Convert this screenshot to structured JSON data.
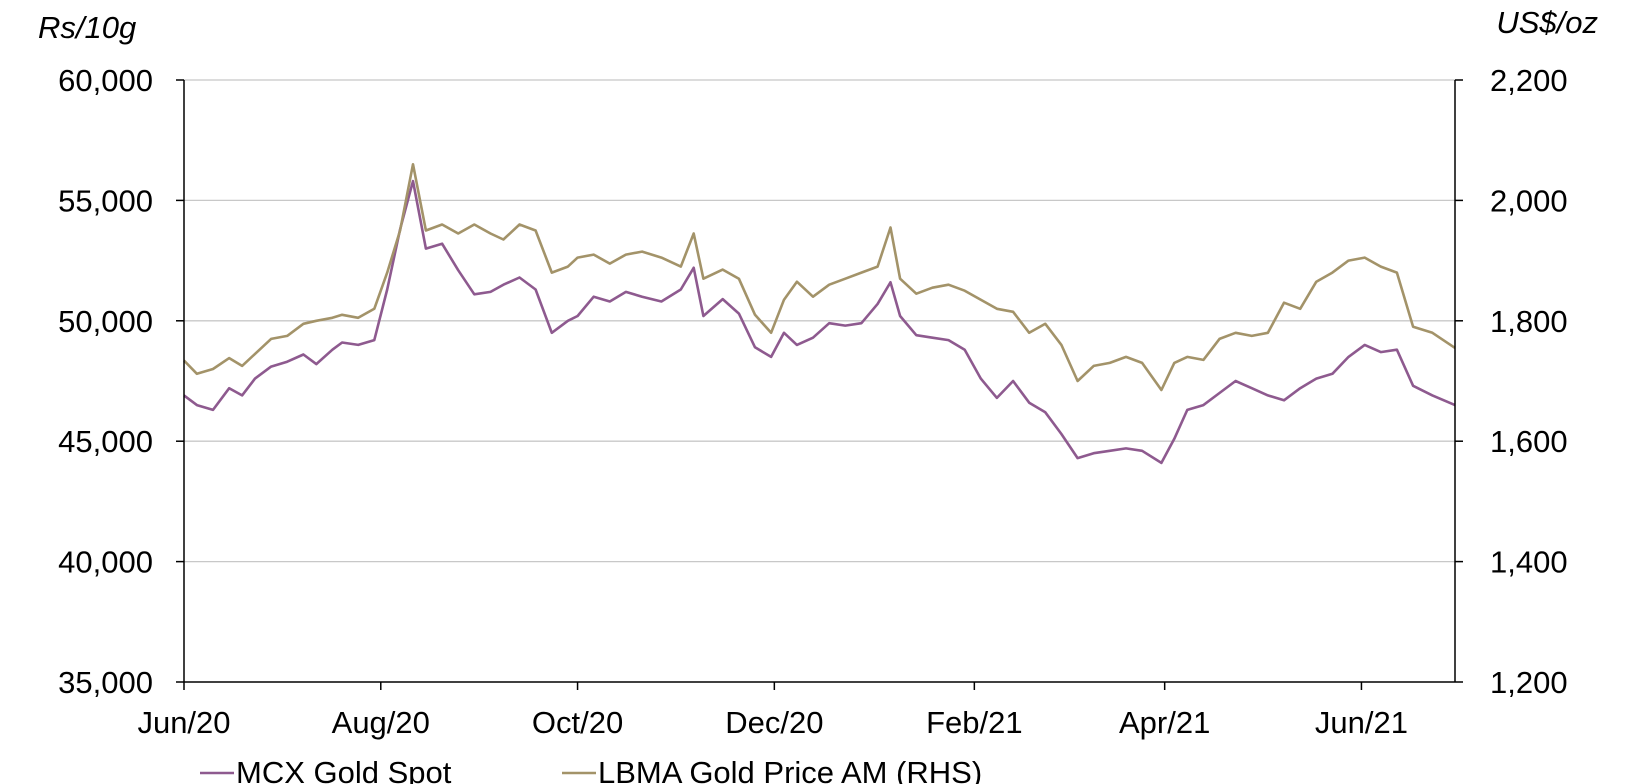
{
  "chart_data": {
    "type": "line",
    "title": "",
    "xlabel": "",
    "left_axis": {
      "unit": "Rs/10g",
      "ylim": [
        35000,
        60000
      ],
      "ticks": [
        35000,
        40000,
        45000,
        50000,
        55000,
        60000
      ],
      "tick_labels": [
        "35,000",
        "40,000",
        "45,000",
        "50,000",
        "55,000",
        "60,000"
      ]
    },
    "right_axis": {
      "unit": "US$/oz",
      "ylim": [
        1200,
        2200
      ],
      "ticks": [
        1200,
        1400,
        1600,
        1800,
        2000,
        2200
      ],
      "tick_labels": [
        "1,200",
        "1,400",
        "1,600",
        "1,800",
        "2,000",
        "2,200"
      ]
    },
    "x_axis": {
      "xlim": [
        "2020-06-01",
        "2021-06-30"
      ],
      "ticks": [
        "2020-06-01",
        "2020-08-01",
        "2020-10-01",
        "2020-12-01",
        "2021-02-01",
        "2021-04-01",
        "2021-06-01"
      ],
      "tick_labels": [
        "Jun/20",
        "Aug/20",
        "Oct/20",
        "Dec/20",
        "Feb/21",
        "Apr/21",
        "Jun/21"
      ]
    },
    "grid": "horizontal",
    "legend": "bottom",
    "series": [
      {
        "name": "MCX Gold Spot",
        "axis": "left",
        "color": "#8e5a8f",
        "points": [
          [
            "2020-06-01",
            46900
          ],
          [
            "2020-06-05",
            46500
          ],
          [
            "2020-06-10",
            46300
          ],
          [
            "2020-06-15",
            47200
          ],
          [
            "2020-06-19",
            46900
          ],
          [
            "2020-06-23",
            47600
          ],
          [
            "2020-06-28",
            48100
          ],
          [
            "2020-07-03",
            48300
          ],
          [
            "2020-07-08",
            48600
          ],
          [
            "2020-07-12",
            48200
          ],
          [
            "2020-07-17",
            48800
          ],
          [
            "2020-07-20",
            49100
          ],
          [
            "2020-07-25",
            49000
          ],
          [
            "2020-07-30",
            49200
          ],
          [
            "2020-08-03",
            51300
          ],
          [
            "2020-08-07",
            53800
          ],
          [
            "2020-08-11",
            55800
          ],
          [
            "2020-08-15",
            53000
          ],
          [
            "2020-08-20",
            53200
          ],
          [
            "2020-08-25",
            52100
          ],
          [
            "2020-08-30",
            51100
          ],
          [
            "2020-09-04",
            51200
          ],
          [
            "2020-09-08",
            51500
          ],
          [
            "2020-09-13",
            51800
          ],
          [
            "2020-09-18",
            51300
          ],
          [
            "2020-09-23",
            49500
          ],
          [
            "2020-09-28",
            50000
          ],
          [
            "2020-10-01",
            50200
          ],
          [
            "2020-10-06",
            51000
          ],
          [
            "2020-10-11",
            50800
          ],
          [
            "2020-10-16",
            51200
          ],
          [
            "2020-10-21",
            51000
          ],
          [
            "2020-10-27",
            50800
          ],
          [
            "2020-11-02",
            51300
          ],
          [
            "2020-11-06",
            52200
          ],
          [
            "2020-11-09",
            50200
          ],
          [
            "2020-11-15",
            50900
          ],
          [
            "2020-11-20",
            50300
          ],
          [
            "2020-11-25",
            48900
          ],
          [
            "2020-11-30",
            48500
          ],
          [
            "2020-12-04",
            49500
          ],
          [
            "2020-12-08",
            49000
          ],
          [
            "2020-12-13",
            49300
          ],
          [
            "2020-12-18",
            49900
          ],
          [
            "2020-12-23",
            49800
          ],
          [
            "2020-12-28",
            49900
          ],
          [
            "2021-01-02",
            50700
          ],
          [
            "2021-01-06",
            51600
          ],
          [
            "2021-01-09",
            50200
          ],
          [
            "2021-01-14",
            49400
          ],
          [
            "2021-01-19",
            49300
          ],
          [
            "2021-01-24",
            49200
          ],
          [
            "2021-01-29",
            48800
          ],
          [
            "2021-02-03",
            47600
          ],
          [
            "2021-02-08",
            46800
          ],
          [
            "2021-02-13",
            47500
          ],
          [
            "2021-02-18",
            46600
          ],
          [
            "2021-02-23",
            46200
          ],
          [
            "2021-02-28",
            45300
          ],
          [
            "2021-03-05",
            44300
          ],
          [
            "2021-03-10",
            44500
          ],
          [
            "2021-03-15",
            44600
          ],
          [
            "2021-03-20",
            44700
          ],
          [
            "2021-03-25",
            44600
          ],
          [
            "2021-03-31",
            44100
          ],
          [
            "2021-04-04",
            45100
          ],
          [
            "2021-04-08",
            46300
          ],
          [
            "2021-04-13",
            46500
          ],
          [
            "2021-04-18",
            47000
          ],
          [
            "2021-04-23",
            47500
          ],
          [
            "2021-04-28",
            47200
          ],
          [
            "2021-05-03",
            46900
          ],
          [
            "2021-05-08",
            46700
          ],
          [
            "2021-05-13",
            47200
          ],
          [
            "2021-05-18",
            47600
          ],
          [
            "2021-05-23",
            47800
          ],
          [
            "2021-05-28",
            48500
          ],
          [
            "2021-06-02",
            49000
          ],
          [
            "2021-06-07",
            48700
          ],
          [
            "2021-06-12",
            48800
          ],
          [
            "2021-06-17",
            47300
          ],
          [
            "2021-06-23",
            46900
          ],
          [
            "2021-06-30",
            46500
          ]
        ]
      },
      {
        "name": "LBMA Gold Price AM (RHS)",
        "axis": "right",
        "color": "#a39369",
        "points": [
          [
            "2020-06-01",
            1734
          ],
          [
            "2020-06-05",
            1712
          ],
          [
            "2020-06-10",
            1720
          ],
          [
            "2020-06-15",
            1738
          ],
          [
            "2020-06-19",
            1725
          ],
          [
            "2020-06-23",
            1745
          ],
          [
            "2020-06-28",
            1770
          ],
          [
            "2020-07-03",
            1775
          ],
          [
            "2020-07-08",
            1795
          ],
          [
            "2020-07-12",
            1800
          ],
          [
            "2020-07-17",
            1805
          ],
          [
            "2020-07-20",
            1810
          ],
          [
            "2020-07-25",
            1805
          ],
          [
            "2020-07-30",
            1820
          ],
          [
            "2020-08-03",
            1880
          ],
          [
            "2020-08-07",
            1950
          ],
          [
            "2020-08-11",
            2060
          ],
          [
            "2020-08-15",
            1950
          ],
          [
            "2020-08-20",
            1960
          ],
          [
            "2020-08-25",
            1945
          ],
          [
            "2020-08-30",
            1960
          ],
          [
            "2020-09-04",
            1945
          ],
          [
            "2020-09-08",
            1935
          ],
          [
            "2020-09-13",
            1960
          ],
          [
            "2020-09-18",
            1950
          ],
          [
            "2020-09-23",
            1880
          ],
          [
            "2020-09-28",
            1890
          ],
          [
            "2020-10-01",
            1905
          ],
          [
            "2020-10-06",
            1910
          ],
          [
            "2020-10-11",
            1895
          ],
          [
            "2020-10-16",
            1910
          ],
          [
            "2020-10-21",
            1915
          ],
          [
            "2020-10-27",
            1905
          ],
          [
            "2020-11-02",
            1890
          ],
          [
            "2020-11-06",
            1945
          ],
          [
            "2020-11-09",
            1870
          ],
          [
            "2020-11-15",
            1885
          ],
          [
            "2020-11-20",
            1870
          ],
          [
            "2020-11-25",
            1810
          ],
          [
            "2020-11-30",
            1780
          ],
          [
            "2020-12-04",
            1835
          ],
          [
            "2020-12-08",
            1865
          ],
          [
            "2020-12-13",
            1840
          ],
          [
            "2020-12-18",
            1860
          ],
          [
            "2020-12-23",
            1870
          ],
          [
            "2020-12-28",
            1880
          ],
          [
            "2021-01-02",
            1890
          ],
          [
            "2021-01-06",
            1955
          ],
          [
            "2021-01-09",
            1870
          ],
          [
            "2021-01-14",
            1845
          ],
          [
            "2021-01-19",
            1855
          ],
          [
            "2021-01-24",
            1860
          ],
          [
            "2021-01-29",
            1850
          ],
          [
            "2021-02-03",
            1835
          ],
          [
            "2021-02-08",
            1820
          ],
          [
            "2021-02-13",
            1815
          ],
          [
            "2021-02-18",
            1780
          ],
          [
            "2021-02-23",
            1795
          ],
          [
            "2021-02-28",
            1760
          ],
          [
            "2021-03-05",
            1700
          ],
          [
            "2021-03-10",
            1725
          ],
          [
            "2021-03-15",
            1730
          ],
          [
            "2021-03-20",
            1740
          ],
          [
            "2021-03-25",
            1730
          ],
          [
            "2021-03-31",
            1685
          ],
          [
            "2021-04-04",
            1730
          ],
          [
            "2021-04-08",
            1740
          ],
          [
            "2021-04-13",
            1735
          ],
          [
            "2021-04-18",
            1770
          ],
          [
            "2021-04-23",
            1780
          ],
          [
            "2021-04-28",
            1775
          ],
          [
            "2021-05-03",
            1780
          ],
          [
            "2021-05-08",
            1830
          ],
          [
            "2021-05-13",
            1820
          ],
          [
            "2021-05-18",
            1865
          ],
          [
            "2021-05-23",
            1880
          ],
          [
            "2021-05-28",
            1900
          ],
          [
            "2021-06-02",
            1905
          ],
          [
            "2021-06-07",
            1890
          ],
          [
            "2021-06-12",
            1880
          ],
          [
            "2021-06-17",
            1790
          ],
          [
            "2021-06-23",
            1780
          ],
          [
            "2021-06-30",
            1755
          ]
        ]
      }
    ]
  }
}
